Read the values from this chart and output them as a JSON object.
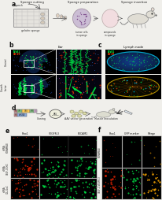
{
  "bg_color": "#f0efeb",
  "panel_a": {
    "title_sponge_cutting": "Sponge cutting",
    "title_sponge_prep": "Sponge preparation",
    "title_sponge_insert": "Sponge insertion",
    "label_punch": "punch",
    "label_gelatin": "gelatin sponge",
    "label_tumor": "tumor cells\nin sponge",
    "label_compound": "compounds\nin sponge"
  },
  "panel_b_label": "Ear",
  "panel_c_label": "Lymph node",
  "panel_d_labels": [
    "Cloning",
    "AAV vector generation",
    "Muscle Inoculation"
  ],
  "panel_e_col_labels": [
    "Prox1",
    "VEGFR-3",
    "PECAM1"
  ],
  "panel_e_row_labels": [
    "siRNA\nSCRAMBLE",
    "siRNA\nVEGF-C/D6C",
    "siRNA\nCCL21aC"
  ],
  "panel_f_col_labels": [
    "Prox1",
    "GFP marker",
    "Merge"
  ],
  "panel_f_row_labels": [
    "siRNA\nSCRAMBLE",
    "siRNA\nVEGF-C-VEGFR-3"
  ],
  "letter_color": "#111111",
  "green_channel": "#00dd44",
  "red_channel": "#dd2200",
  "blue_channel": "#2244cc",
  "cyan_channel": "#00bbcc",
  "magenta_channel": "#cc44cc"
}
